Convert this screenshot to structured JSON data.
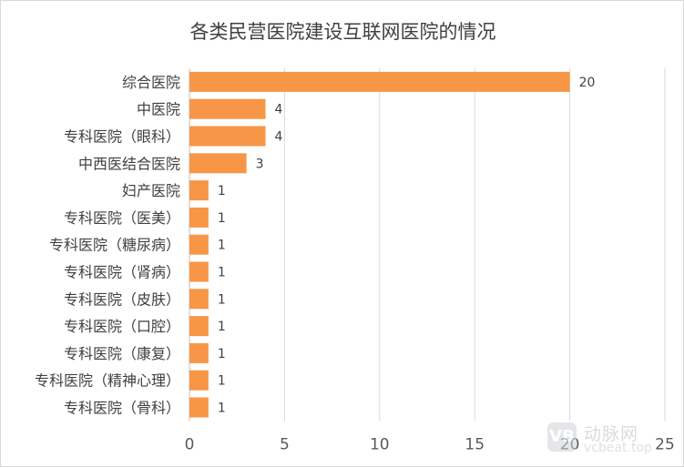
{
  "chart_data": {
    "type": "bar",
    "orientation": "horizontal",
    "title": "各类民营医院建设互联网医院的情况",
    "categories": [
      "综合医院",
      "中医院",
      "专科医院（眼科）",
      "中西医结合医院",
      "妇产医院",
      "专科医院（医美）",
      "专科医院（糖尿病）",
      "专科医院（肾病）",
      "专科医院（皮肤）",
      "专科医院（口腔）",
      "专科医院（康复）",
      "专科医院（精神心理）",
      "专科医院（骨科）"
    ],
    "values": [
      20,
      4,
      4,
      3,
      1,
      1,
      1,
      1,
      1,
      1,
      1,
      1,
      1
    ],
    "xlim": [
      0,
      25
    ],
    "xticks": [
      0,
      5,
      10,
      15,
      20,
      25
    ],
    "grid": "vertical",
    "data_labels": true,
    "colors": {
      "bar": "#F79646",
      "grid": "#d9d9d9",
      "text": "#404040"
    }
  },
  "watermark": {
    "logo_text": "VB",
    "name": "动脉网",
    "url": "vcbeat.top"
  }
}
